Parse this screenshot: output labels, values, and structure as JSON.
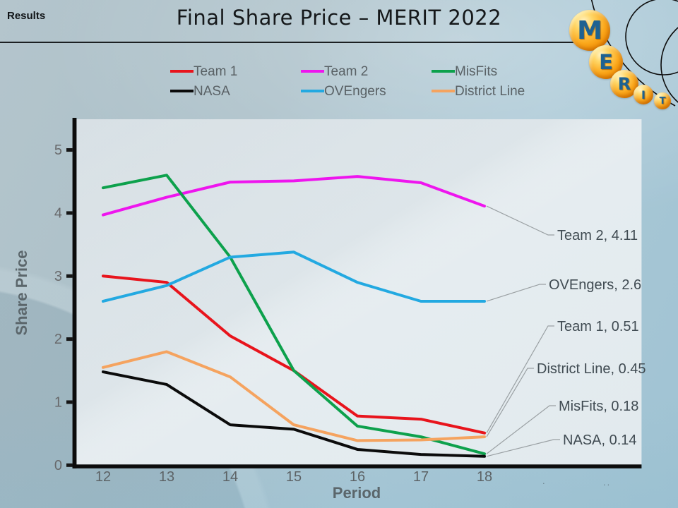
{
  "header": {
    "corner_label": "Results",
    "title": "Final Share Price – MERIT 2022"
  },
  "logo": {
    "letters": [
      "M",
      "E",
      "R",
      "I",
      "T"
    ]
  },
  "footnote": {
    "mark1": ".",
    "mark2": ".."
  },
  "chart_data": {
    "type": "line",
    "title": "Final Share Price – MERIT 2022",
    "xlabel": "Period",
    "ylabel": "Share Price",
    "x": [
      12,
      13,
      14,
      15,
      16,
      17,
      18
    ],
    "ylim": [
      0,
      5.5
    ],
    "yticks": [
      0,
      1,
      2,
      3,
      4,
      5
    ],
    "grid": false,
    "legend_position": "top",
    "series": [
      {
        "name": "Team 1",
        "color": "#e8141c",
        "values": [
          3.0,
          2.9,
          2.05,
          1.5,
          0.78,
          0.73,
          0.51
        ]
      },
      {
        "name": "Team 2",
        "color": "#ee15ee",
        "values": [
          3.97,
          4.25,
          4.49,
          4.51,
          4.58,
          4.48,
          4.11
        ]
      },
      {
        "name": "MisFits",
        "color": "#0da14c",
        "values": [
          4.4,
          4.6,
          3.3,
          1.5,
          0.62,
          0.45,
          0.18
        ]
      },
      {
        "name": "NASA",
        "color": "#0b0b0b",
        "values": [
          1.48,
          1.28,
          0.64,
          0.57,
          0.25,
          0.17,
          0.14
        ]
      },
      {
        "name": "OVEngers",
        "color": "#23a9e1",
        "values": [
          2.6,
          2.85,
          3.3,
          3.38,
          2.9,
          2.6,
          2.6
        ]
      },
      {
        "name": "District Line",
        "color": "#f5a35f",
        "values": [
          1.55,
          1.8,
          1.4,
          0.64,
          0.39,
          0.4,
          0.45
        ]
      }
    ],
    "end_labels": [
      {
        "series": "Team 2",
        "text": "Team 2, 4.11"
      },
      {
        "series": "OVEngers",
        "text": "OVEngers, 2.6"
      },
      {
        "series": "Team 1",
        "text": "Team 1, 0.51"
      },
      {
        "series": "District Line",
        "text": "District Line, 0.45"
      },
      {
        "series": "MisFits",
        "text": "MisFits, 0.18"
      },
      {
        "series": "NASA",
        "text": "NASA, 0.14"
      }
    ]
  }
}
